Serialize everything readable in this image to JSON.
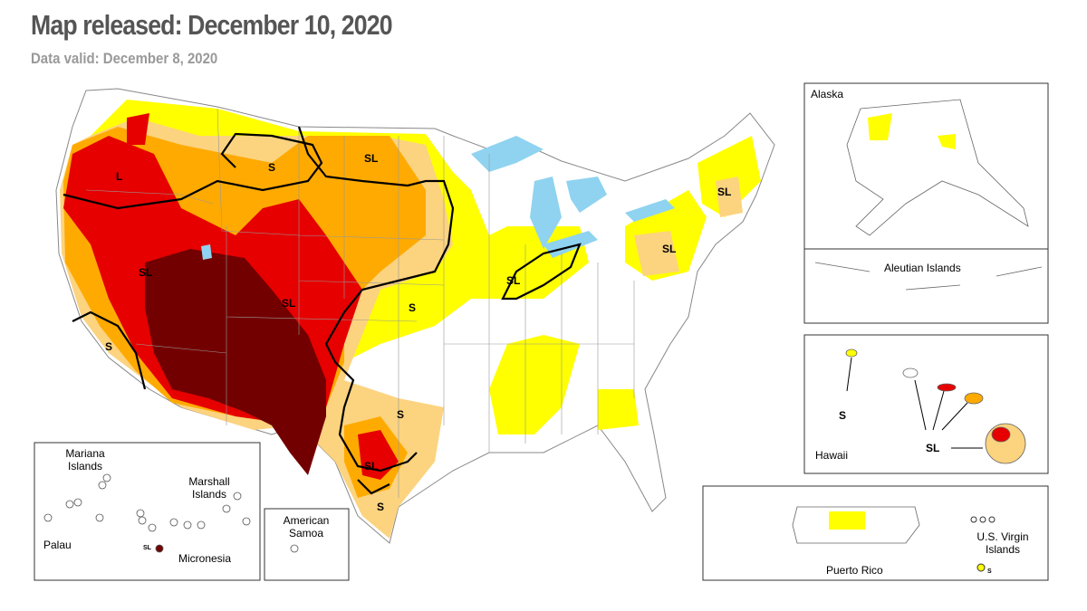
{
  "header": {
    "title": "Map released: December 10, 2020",
    "subtitle": "Data valid: December 8, 2020"
  },
  "conus": {
    "labels": [
      "L",
      "S",
      "SL",
      "SL",
      "SL",
      "SL",
      "SL",
      "S",
      "SL",
      "S",
      "S",
      "SL",
      "S"
    ]
  },
  "insets": {
    "alaska": {
      "name": "Alaska"
    },
    "aleutians": {
      "name": "Aleutian Islands"
    },
    "hawaii": {
      "name": "Hawaii",
      "labels": [
        "S",
        "SL"
      ]
    },
    "puerto_rico": {
      "name": "Puerto Rico"
    },
    "virgin_islands": {
      "name": "U.S. Virgin Islands",
      "label": "S"
    },
    "pacific": {
      "mariana": "Mariana Islands",
      "marshall": "Marshall Islands",
      "palau": "Palau",
      "micronesia": "Micronesia",
      "micronesia_label": "SL"
    },
    "samoa": {
      "name": "American Samoa"
    }
  }
}
